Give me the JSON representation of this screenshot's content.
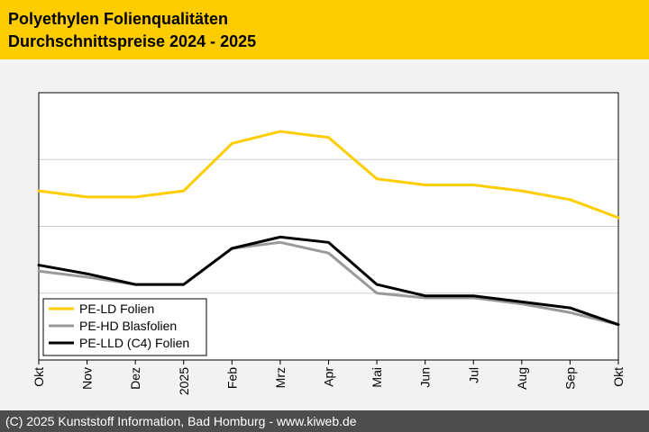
{
  "header": {
    "title_line1": "Polyethylen Folienqualitäten",
    "title_line2": "Durchschnittspreise 2024 - 2025"
  },
  "footer": {
    "copyright": "(C) 2025 Kunststoff Information, Bad Homburg - www.kiweb.de"
  },
  "colors": {
    "brand": "#ffcc00",
    "pe_ld": "#ffcc00",
    "pe_hd": "#999999",
    "pe_lld": "#000000"
  },
  "chart_data": {
    "type": "line",
    "title": "Durchschnittspreise 2024 - 2025",
    "xlabel": "",
    "ylabel": "",
    "categories": [
      "Okt",
      "Nov",
      "Dez",
      "2025",
      "Feb",
      "Mrz",
      "Apr",
      "Mai",
      "Jun",
      "Jul",
      "Aug",
      "Sep",
      "Okt"
    ],
    "ylim": [
      0,
      4
    ],
    "gridlines_y": [
      1,
      2,
      3
    ],
    "legend_position": "bottom-left",
    "series": [
      {
        "name": "PE-LD Folien",
        "color": "#ffcc00",
        "values": [
          2.53,
          2.44,
          2.44,
          2.53,
          3.24,
          3.42,
          3.33,
          2.71,
          2.62,
          2.62,
          2.53,
          2.4,
          2.13
        ]
      },
      {
        "name": "PE-HD Blasfolien",
        "color": "#999999",
        "values": [
          1.33,
          1.24,
          1.13,
          1.13,
          1.67,
          1.76,
          1.6,
          1.0,
          0.93,
          0.93,
          0.84,
          0.71,
          0.53
        ]
      },
      {
        "name": "PE-LLD (C4) Folien",
        "color": "#000000",
        "values": [
          1.42,
          1.29,
          1.13,
          1.13,
          1.67,
          1.84,
          1.76,
          1.13,
          0.96,
          0.96,
          0.87,
          0.78,
          0.53
        ]
      }
    ]
  }
}
